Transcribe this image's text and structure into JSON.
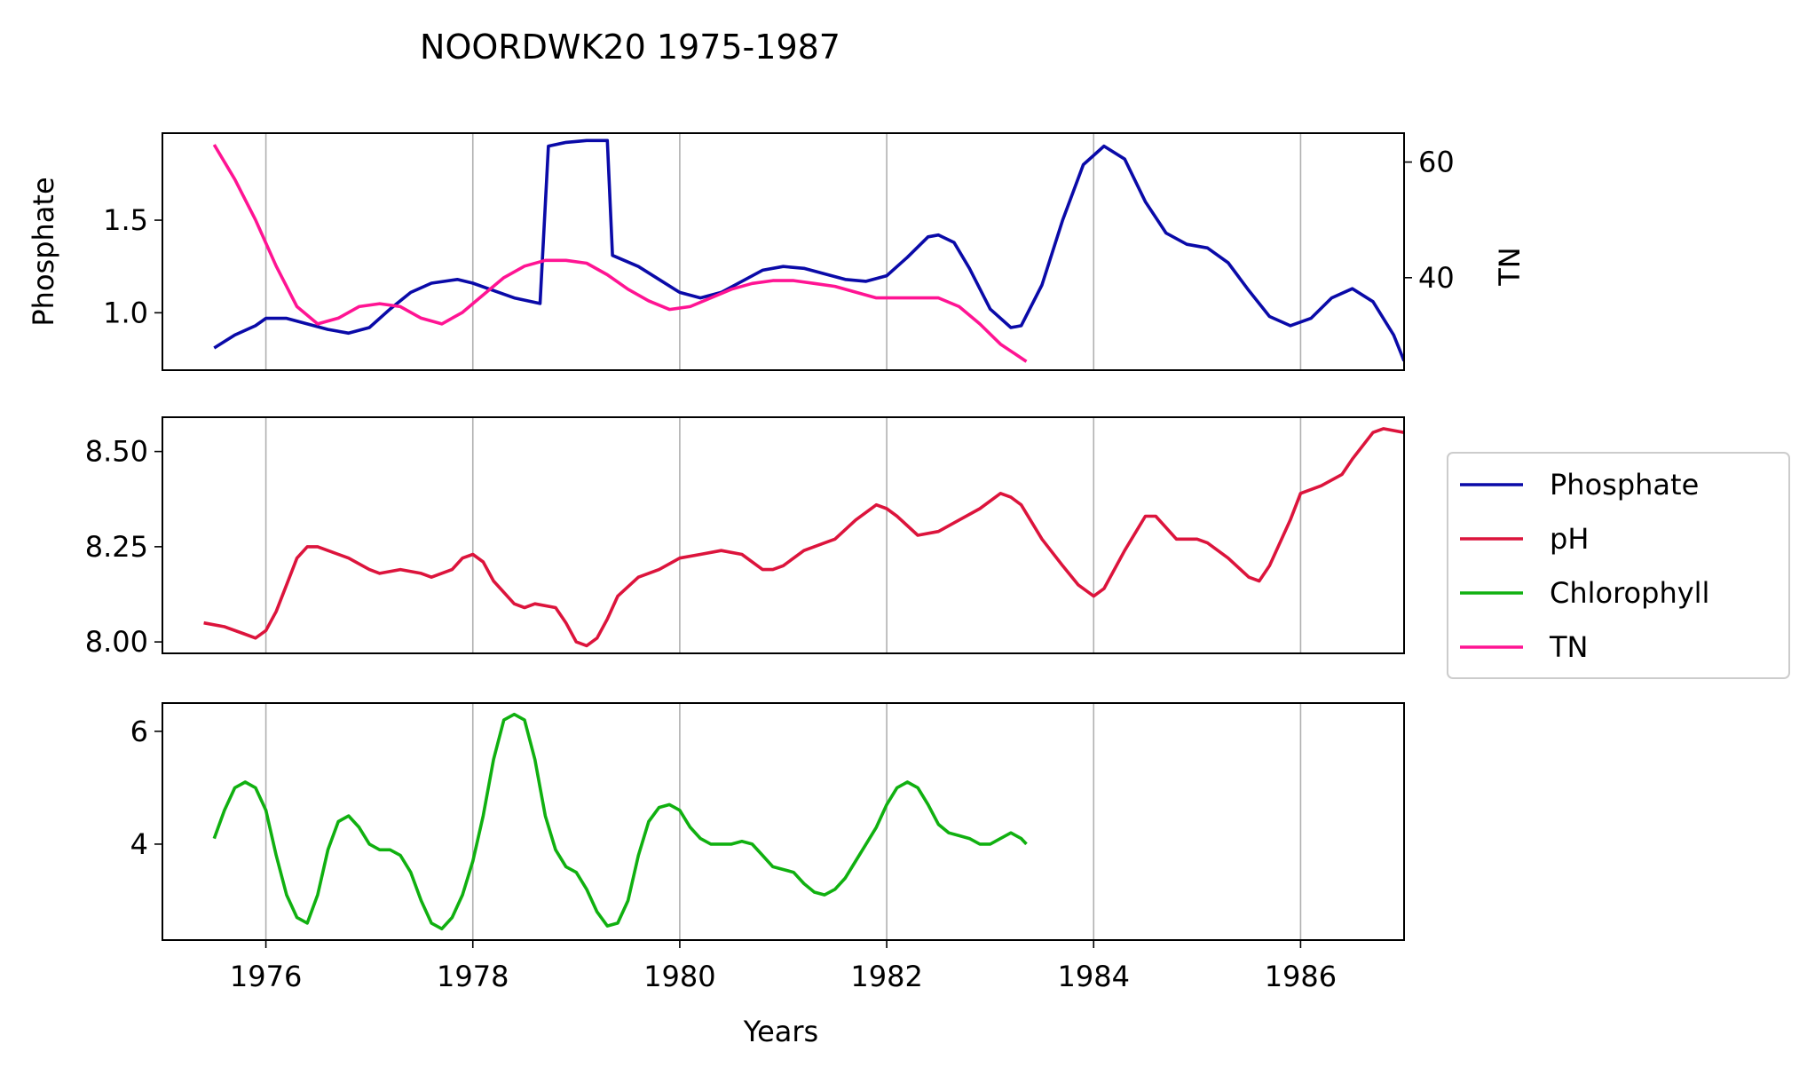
{
  "chart_data": {
    "type": "line",
    "title": "NOORDWK20 1975-1987",
    "xlabel": "Years",
    "xlim": [
      1975.0,
      1987.0
    ],
    "x_ticks": [
      1976,
      1978,
      1980,
      1982,
      1984,
      1986
    ],
    "grid": "vertical",
    "legend": {
      "placement": "right",
      "entries": [
        "Phosphate",
        "pH",
        "Chlorophyll",
        "TN"
      ]
    },
    "colors": {
      "Phosphate": "#0a0aa8",
      "pH": "#dc143c",
      "Chlorophyll": "#10b010",
      "TN": "#ff1493",
      "grid": "#b0b0b0"
    },
    "panels": [
      {
        "ylabel": "Phosphate",
        "ylim": [
          0.69,
          1.97
        ],
        "y_ticks": [
          1.0,
          1.5
        ],
        "y_tick_labels": [
          "1.0",
          "1.5"
        ],
        "secondary": {
          "ylabel": "TN",
          "ylim": [
            24,
            65
          ],
          "y_ticks": [
            40,
            60
          ],
          "y_tick_labels": [
            "40",
            "60"
          ]
        }
      },
      {
        "ylabel": "",
        "ylim": [
          7.97,
          8.59
        ],
        "y_ticks": [
          8.0,
          8.25,
          8.5
        ],
        "y_tick_labels": [
          "8.00",
          "8.25",
          "8.50"
        ]
      },
      {
        "ylabel": "",
        "ylim": [
          2.3,
          6.5
        ],
        "y_ticks": [
          4,
          6
        ],
        "y_tick_labels": [
          "4",
          "6"
        ]
      }
    ],
    "series": [
      {
        "name": "Phosphate",
        "panel": 0,
        "axis": "left",
        "x": [
          1975.5,
          1975.7,
          1975.9,
          1976.0,
          1976.2,
          1976.4,
          1976.6,
          1976.8,
          1977.0,
          1977.2,
          1977.4,
          1977.6,
          1977.85,
          1978.0,
          1978.2,
          1978.4,
          1978.65,
          1978.73,
          1978.9,
          1979.1,
          1979.3,
          1979.35,
          1979.6,
          1979.8,
          1980.0,
          1980.2,
          1980.4,
          1980.6,
          1980.8,
          1981.0,
          1981.2,
          1981.4,
          1981.6,
          1981.8,
          1982.0,
          1982.2,
          1982.4,
          1982.5,
          1982.65,
          1982.8,
          1983.0,
          1983.2,
          1983.3,
          1983.5,
          1983.7,
          1983.9,
          1984.1,
          1984.3,
          1984.5,
          1984.7,
          1984.9,
          1985.1,
          1985.3,
          1985.5,
          1985.7,
          1985.9,
          1986.1,
          1986.3,
          1986.5,
          1986.7,
          1986.9,
          1987.0
        ],
        "values": [
          0.81,
          0.88,
          0.93,
          0.97,
          0.97,
          0.94,
          0.91,
          0.89,
          0.92,
          1.02,
          1.11,
          1.16,
          1.18,
          1.16,
          1.12,
          1.08,
          1.05,
          1.9,
          1.92,
          1.93,
          1.93,
          1.31,
          1.25,
          1.18,
          1.11,
          1.08,
          1.11,
          1.17,
          1.23,
          1.25,
          1.24,
          1.21,
          1.18,
          1.17,
          1.2,
          1.3,
          1.41,
          1.42,
          1.38,
          1.24,
          1.02,
          0.92,
          0.93,
          1.15,
          1.5,
          1.8,
          1.9,
          1.83,
          1.6,
          1.43,
          1.37,
          1.35,
          1.27,
          1.12,
          0.98,
          0.93,
          0.97,
          1.08,
          1.13,
          1.06,
          0.88,
          0.74
        ]
      },
      {
        "name": "TN",
        "panel": 0,
        "axis": "right",
        "x": [
          1975.5,
          1975.7,
          1975.9,
          1976.1,
          1976.3,
          1976.5,
          1976.7,
          1976.9,
          1977.1,
          1977.3,
          1977.5,
          1977.7,
          1977.9,
          1978.1,
          1978.3,
          1978.5,
          1978.7,
          1978.9,
          1979.1,
          1979.3,
          1979.5,
          1979.7,
          1979.9,
          1980.1,
          1980.3,
          1980.5,
          1980.7,
          1980.9,
          1981.1,
          1981.3,
          1981.5,
          1981.7,
          1981.9,
          1982.1,
          1982.3,
          1982.5,
          1982.7,
          1982.9,
          1983.1,
          1983.35
        ],
        "values": [
          63,
          57,
          50,
          42,
          35,
          32,
          33,
          35,
          35.5,
          35,
          33,
          32,
          34,
          37,
          40,
          42,
          43,
          43,
          42.5,
          40.5,
          38,
          36,
          34.5,
          35,
          36.5,
          38,
          39,
          39.5,
          39.5,
          39,
          38.5,
          37.5,
          36.5,
          36.5,
          36.5,
          36.5,
          35,
          32,
          28.5,
          25.5
        ]
      },
      {
        "name": "pH",
        "panel": 1,
        "axis": "left",
        "x": [
          1975.4,
          1975.6,
          1975.8,
          1975.9,
          1976.0,
          1976.1,
          1976.2,
          1976.3,
          1976.4,
          1976.5,
          1976.6,
          1976.8,
          1977.0,
          1977.1,
          1977.3,
          1977.5,
          1977.6,
          1977.8,
          1977.9,
          1978.0,
          1978.1,
          1978.2,
          1978.4,
          1978.5,
          1978.6,
          1978.8,
          1978.9,
          1979.0,
          1979.1,
          1979.2,
          1979.3,
          1979.4,
          1979.6,
          1979.8,
          1980.0,
          1980.2,
          1980.4,
          1980.6,
          1980.8,
          1980.9,
          1981.0,
          1981.2,
          1981.4,
          1981.5,
          1981.7,
          1981.9,
          1982.0,
          1982.1,
          1982.3,
          1982.5,
          1982.7,
          1982.9,
          1983.1,
          1983.2,
          1983.3,
          1983.5,
          1983.7,
          1983.85,
          1984.0,
          1984.1,
          1984.3,
          1984.5,
          1984.6,
          1984.8,
          1985.0,
          1985.1,
          1985.3,
          1985.5,
          1985.6,
          1985.7,
          1985.9,
          1986.0,
          1986.2,
          1986.4,
          1986.5,
          1986.7,
          1986.8,
          1987.0
        ],
        "values": [
          8.05,
          8.04,
          8.02,
          8.01,
          8.03,
          8.08,
          8.15,
          8.22,
          8.25,
          8.25,
          8.24,
          8.22,
          8.19,
          8.18,
          8.19,
          8.18,
          8.17,
          8.19,
          8.22,
          8.23,
          8.21,
          8.16,
          8.1,
          8.09,
          8.1,
          8.09,
          8.05,
          8.0,
          7.99,
          8.01,
          8.06,
          8.12,
          8.17,
          8.19,
          8.22,
          8.23,
          8.24,
          8.23,
          8.19,
          8.19,
          8.2,
          8.24,
          8.26,
          8.27,
          8.32,
          8.36,
          8.35,
          8.33,
          8.28,
          8.29,
          8.32,
          8.35,
          8.39,
          8.38,
          8.36,
          8.27,
          8.2,
          8.15,
          8.12,
          8.14,
          8.24,
          8.33,
          8.33,
          8.27,
          8.27,
          8.26,
          8.22,
          8.17,
          8.16,
          8.2,
          8.32,
          8.39,
          8.41,
          8.44,
          8.48,
          8.55,
          8.56,
          8.55
        ]
      },
      {
        "name": "Chlorophyll",
        "panel": 2,
        "axis": "left",
        "x": [
          1975.5,
          1975.6,
          1975.7,
          1975.8,
          1975.9,
          1976.0,
          1976.1,
          1976.2,
          1976.3,
          1976.4,
          1976.5,
          1976.6,
          1976.7,
          1976.8,
          1976.9,
          1977.0,
          1977.1,
          1977.2,
          1977.3,
          1977.4,
          1977.5,
          1977.6,
          1977.7,
          1977.8,
          1977.9,
          1978.0,
          1978.1,
          1978.2,
          1978.3,
          1978.4,
          1978.5,
          1978.6,
          1978.7,
          1978.8,
          1978.9,
          1979.0,
          1979.1,
          1979.2,
          1979.3,
          1979.4,
          1979.5,
          1979.6,
          1979.7,
          1979.8,
          1979.9,
          1980.0,
          1980.1,
          1980.2,
          1980.3,
          1980.4,
          1980.5,
          1980.6,
          1980.7,
          1980.8,
          1980.9,
          1981.0,
          1981.1,
          1981.2,
          1981.3,
          1981.4,
          1981.5,
          1981.6,
          1981.7,
          1981.8,
          1981.9,
          1982.0,
          1982.1,
          1982.2,
          1982.3,
          1982.4,
          1982.5,
          1982.6,
          1982.7,
          1982.8,
          1982.9,
          1983.0,
          1983.1,
          1983.2,
          1983.3,
          1983.35
        ],
        "values": [
          4.1,
          4.6,
          5.0,
          5.1,
          5.0,
          4.6,
          3.8,
          3.1,
          2.7,
          2.6,
          3.1,
          3.9,
          4.4,
          4.5,
          4.3,
          4.0,
          3.9,
          3.9,
          3.8,
          3.5,
          3.0,
          2.6,
          2.5,
          2.7,
          3.1,
          3.7,
          4.5,
          5.5,
          6.2,
          6.3,
          6.2,
          5.5,
          4.5,
          3.9,
          3.6,
          3.5,
          3.2,
          2.8,
          2.55,
          2.6,
          3.0,
          3.8,
          4.4,
          4.65,
          4.7,
          4.6,
          4.3,
          4.1,
          4.0,
          4.0,
          4.0,
          4.05,
          4.0,
          3.8,
          3.6,
          3.55,
          3.5,
          3.3,
          3.15,
          3.1,
          3.2,
          3.4,
          3.7,
          4.0,
          4.3,
          4.7,
          5.0,
          5.1,
          5.0,
          4.7,
          4.35,
          4.2,
          4.15,
          4.1,
          4.0,
          4.0,
          4.1,
          4.2,
          4.1,
          4.0
        ]
      }
    ]
  }
}
